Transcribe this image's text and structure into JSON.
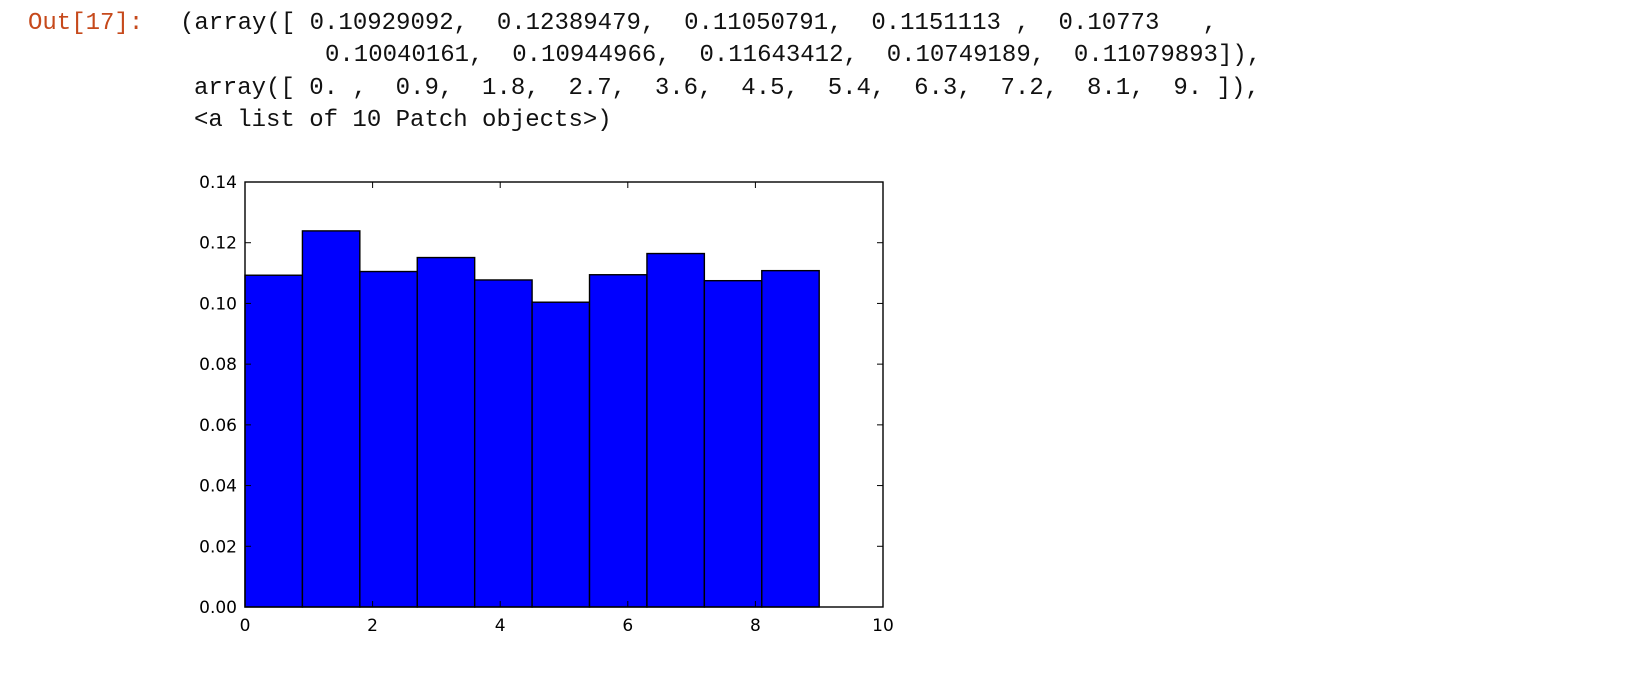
{
  "output": {
    "prompt": "Out[17]:",
    "lines": [
      "(array([ 0.10929092,  0.12389479,  0.11050791,  0.1151113 ,  0.10773   ,",
      "0.10040161,  0.10944966,  0.11643412,  0.10749189,  0.11079893]),",
      "array([ 0. ,  0.9,  1.8,  2.7,  3.6,  4.5,  5.4,  6.3,  7.2,  8.1,  9. ]),",
      "<a list of 10 Patch objects>)"
    ]
  },
  "chart_data": {
    "type": "bar",
    "style": "histogram",
    "bin_edges": [
      0,
      0.9,
      1.8,
      2.7,
      3.6,
      4.5,
      5.4,
      6.3,
      7.2,
      8.1,
      9.0
    ],
    "values": [
      0.10929092,
      0.12389479,
      0.11050791,
      0.1151113,
      0.10773,
      0.10040161,
      0.10944966,
      0.11643412,
      0.10749189,
      0.11079893
    ],
    "xlim": [
      0,
      10
    ],
    "ylim": [
      0,
      0.14
    ],
    "xticks": [
      "0",
      "2",
      "4",
      "6",
      "8",
      "10"
    ],
    "yticks": [
      "0.00",
      "0.02",
      "0.04",
      "0.06",
      "0.08",
      "0.10",
      "0.12",
      "0.14"
    ],
    "grid": false,
    "bar_color": "#0000ff",
    "edge_color": "#000000"
  }
}
